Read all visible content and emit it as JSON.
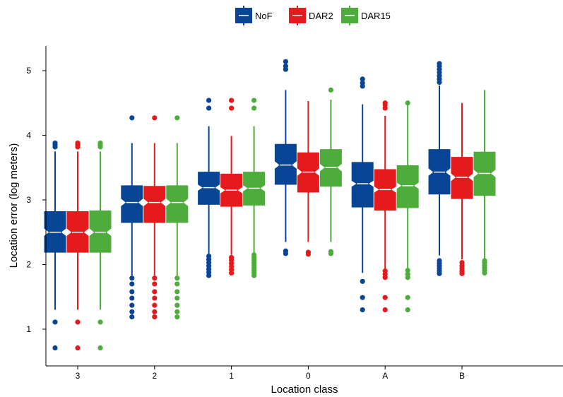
{
  "chart_data": {
    "type": "boxplot",
    "notched": true,
    "xlabel": "Location class",
    "ylabel": "Location error (log meters)",
    "categories": [
      "3",
      "2",
      "1",
      "0",
      "A",
      "B"
    ],
    "ylim": [
      0.45,
      5.35
    ],
    "yticks": [
      1,
      2,
      3,
      4,
      5
    ],
    "legend_position": "top",
    "series": [
      {
        "name": "NoF",
        "color": "#084594",
        "boxes": [
          {
            "q1": 2.19,
            "median": 2.5,
            "q3": 2.82,
            "notch": [
              2.44,
              2.56
            ],
            "whisker_low": 1.3,
            "whisker_high": 3.75,
            "outliers": [
              0.71,
              1.11,
              3.82,
              3.85,
              3.88
            ]
          },
          {
            "q1": 2.65,
            "median": 2.96,
            "q3": 3.22,
            "notch": [
              2.9,
              3.02
            ],
            "whisker_low": 1.83,
            "whisker_high": 3.88,
            "outliers": [
              1.19,
              1.27,
              1.37,
              1.48,
              1.58,
              1.7,
              1.79,
              4.27
            ]
          },
          {
            "q1": 2.93,
            "median": 3.19,
            "q3": 3.43,
            "notch": [
              3.14,
              3.24
            ],
            "whisker_low": 2.17,
            "whisker_high": 4.14,
            "outliers": [
              1.83,
              1.88,
              1.93,
              1.98,
              2.03,
              2.08,
              2.13,
              4.42,
              4.54
            ]
          },
          {
            "q1": 3.24,
            "median": 3.54,
            "q3": 3.86,
            "notch": [
              3.48,
              3.6
            ],
            "whisker_low": 2.35,
            "whisker_high": 4.7,
            "outliers": [
              2.17,
              2.21,
              5.02,
              5.07,
              5.14
            ]
          },
          {
            "q1": 2.89,
            "median": 3.25,
            "q3": 3.58,
            "notch": [
              3.2,
              3.3
            ],
            "whisker_low": 1.87,
            "whisker_high": 4.48,
            "outliers": [
              1.3,
              1.49,
              1.74,
              4.76,
              4.81,
              4.87
            ]
          },
          {
            "q1": 3.09,
            "median": 3.43,
            "q3": 3.78,
            "notch": [
              3.37,
              3.49
            ],
            "whisker_low": 2.14,
            "whisker_high": 4.77,
            "outliers": [
              1.86,
              1.9,
              1.94,
              1.98,
              2.02,
              2.06,
              4.82,
              4.87,
              4.92,
              4.97,
              5.02,
              5.07,
              5.11
            ]
          }
        ]
      },
      {
        "name": "DAR2",
        "color": "#e41a1c",
        "boxes": [
          {
            "q1": 2.19,
            "median": 2.5,
            "q3": 2.82,
            "notch": [
              2.44,
              2.56
            ],
            "whisker_low": 1.3,
            "whisker_high": 3.75,
            "outliers": [
              0.71,
              1.11,
              3.82,
              3.85,
              3.88
            ]
          },
          {
            "q1": 2.65,
            "median": 2.96,
            "q3": 3.21,
            "notch": [
              2.9,
              3.02
            ],
            "whisker_low": 1.83,
            "whisker_high": 3.88,
            "outliers": [
              1.19,
              1.27,
              1.37,
              1.48,
              1.58,
              1.7,
              1.79,
              4.27
            ]
          },
          {
            "q1": 2.9,
            "median": 3.15,
            "q3": 3.4,
            "notch": [
              3.1,
              3.2
            ],
            "whisker_low": 2.15,
            "whisker_high": 3.99,
            "outliers": [
              1.87,
              1.92,
              1.97,
              2.02,
              2.07,
              2.11,
              4.42,
              4.54
            ]
          },
          {
            "q1": 3.12,
            "median": 3.43,
            "q3": 3.73,
            "notch": [
              3.37,
              3.49
            ],
            "whisker_low": 2.35,
            "whisker_high": 4.53,
            "outliers": [
              2.16,
              2.19
            ]
          },
          {
            "q1": 2.84,
            "median": 3.16,
            "q3": 3.47,
            "notch": [
              3.11,
              3.21
            ],
            "whisker_low": 1.93,
            "whisker_high": 4.3,
            "outliers": [
              1.3,
              1.49,
              1.8,
              1.85,
              1.9,
              4.42,
              4.47,
              4.5
            ]
          },
          {
            "q1": 3.02,
            "median": 3.35,
            "q3": 3.66,
            "notch": [
              3.29,
              3.41
            ],
            "whisker_low": 2.08,
            "whisker_high": 4.5,
            "outliers": [
              1.86,
              1.9,
              1.94,
              1.98,
              2.03
            ]
          }
        ]
      },
      {
        "name": "DAR15",
        "color": "#4dac3c",
        "boxes": [
          {
            "q1": 2.19,
            "median": 2.5,
            "q3": 2.83,
            "notch": [
              2.44,
              2.56
            ],
            "whisker_low": 1.3,
            "whisker_high": 3.75,
            "outliers": [
              0.71,
              1.11,
              3.82,
              3.85,
              3.88
            ]
          },
          {
            "q1": 2.65,
            "median": 2.96,
            "q3": 3.22,
            "notch": [
              2.9,
              3.02
            ],
            "whisker_low": 1.83,
            "whisker_high": 3.88,
            "outliers": [
              1.19,
              1.27,
              1.37,
              1.48,
              1.58,
              1.7,
              1.79,
              4.27
            ]
          },
          {
            "q1": 2.92,
            "median": 3.18,
            "q3": 3.43,
            "notch": [
              3.13,
              3.23
            ],
            "whisker_low": 2.17,
            "whisker_high": 4.14,
            "outliers": [
              1.83,
              1.87,
              1.91,
              1.95,
              1.99,
              2.03,
              2.07,
              2.11,
              2.15,
              4.42,
              4.54
            ]
          },
          {
            "q1": 3.21,
            "median": 3.5,
            "q3": 3.78,
            "notch": [
              3.44,
              3.56
            ],
            "whisker_low": 2.35,
            "whisker_high": 4.55,
            "outliers": [
              2.17,
              2.2,
              4.7
            ]
          },
          {
            "q1": 2.88,
            "median": 3.22,
            "q3": 3.53,
            "notch": [
              3.17,
              3.27
            ],
            "whisker_low": 1.95,
            "whisker_high": 4.48,
            "outliers": [
              1.3,
              1.49,
              1.8,
              1.85,
              1.91,
              4.5
            ]
          },
          {
            "q1": 3.07,
            "median": 3.41,
            "q3": 3.74,
            "notch": [
              3.35,
              3.47
            ],
            "whisker_low": 2.08,
            "whisker_high": 4.7,
            "outliers": [
              1.87,
              1.91,
              1.95,
              1.99,
              2.03,
              2.06
            ]
          }
        ]
      }
    ]
  }
}
